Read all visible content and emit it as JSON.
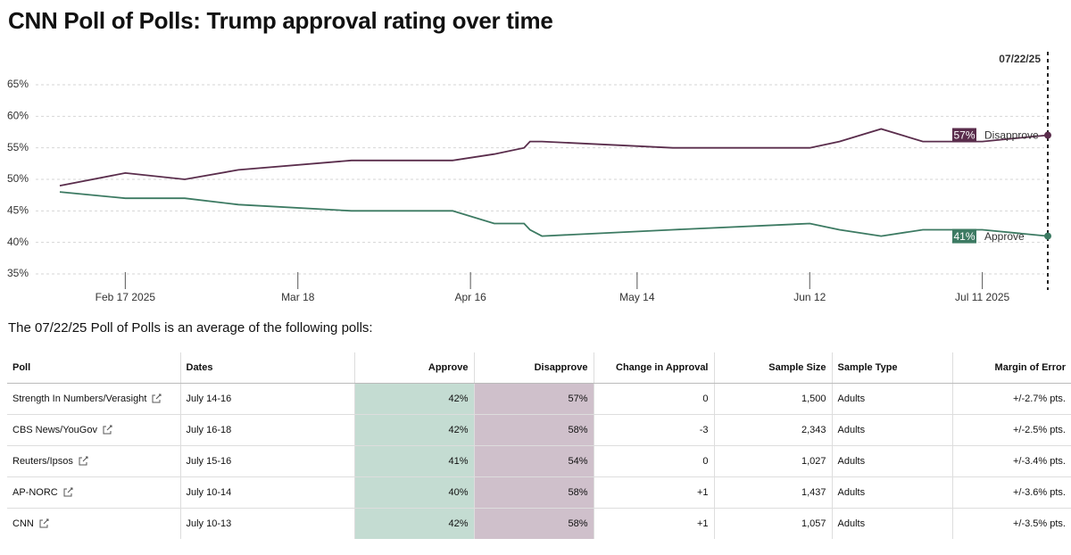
{
  "title": "CNN Poll of Polls: Trump approval rating over time",
  "chart_data": {
    "type": "line",
    "x": [
      "2025-02-06",
      "2025-02-17",
      "2025-02-27",
      "2025-03-08",
      "2025-03-27",
      "2025-04-13",
      "2025-04-20",
      "2025-04-25",
      "2025-04-26",
      "2025-04-28",
      "2025-05-20",
      "2025-06-12",
      "2025-06-17",
      "2025-06-24",
      "2025-07-01",
      "2025-07-11",
      "2025-07-22"
    ],
    "xlim": [
      "2025-02-06",
      "2025-07-22"
    ],
    "xticks": [
      {
        "value": "2025-02-17",
        "label": "Feb 17 2025"
      },
      {
        "value": "2025-03-18",
        "label": "Mar 18"
      },
      {
        "value": "2025-04-16",
        "label": "Apr 16"
      },
      {
        "value": "2025-05-14",
        "label": "May 14"
      },
      {
        "value": "2025-06-12",
        "label": "Jun 12"
      },
      {
        "value": "2025-07-11",
        "label": "Jul 11 2025"
      }
    ],
    "current_date": {
      "value": "2025-07-22",
      "label": "07/22/25"
    },
    "ylim": [
      35,
      65
    ],
    "yticks": [
      {
        "value": 35,
        "label": "35%"
      },
      {
        "value": 40,
        "label": "40%"
      },
      {
        "value": 45,
        "label": "45%"
      },
      {
        "value": 50,
        "label": "50%"
      },
      {
        "value": 55,
        "label": "55%"
      },
      {
        "value": 60,
        "label": "60%"
      },
      {
        "value": 65,
        "label": "65%"
      }
    ],
    "grid": true,
    "series": [
      {
        "name": "Disapprove",
        "color": "#5a2d4c",
        "values": [
          49,
          51,
          50,
          51.5,
          53,
          53,
          54,
          55,
          56,
          56,
          55,
          55,
          56,
          58,
          56,
          56,
          57
        ],
        "value_labels": [
          null,
          null,
          null,
          null,
          null,
          null,
          null,
          null,
          null,
          null,
          null,
          null,
          null,
          null,
          null,
          null,
          "57%"
        ]
      },
      {
        "name": "Approve",
        "color": "#3c7a62",
        "values": [
          48,
          47,
          47,
          46,
          45,
          45,
          43,
          43,
          42,
          41,
          42,
          43,
          42,
          41,
          42,
          42,
          41
        ],
        "value_labels": [
          null,
          null,
          null,
          null,
          null,
          null,
          null,
          null,
          null,
          null,
          null,
          null,
          null,
          null,
          null,
          null,
          "41%"
        ]
      }
    ]
  },
  "table": {
    "intro": "The 07/22/25 Poll of Polls is an average of the following polls:",
    "columns": [
      "Poll",
      "Dates",
      "Approve",
      "Disapprove",
      "Change in Approval",
      "Sample Size",
      "Sample Type",
      "Margin of Error"
    ],
    "rows": [
      [
        "Strength In Numbers/Verasight",
        "July 14-16",
        "42%",
        "57%",
        "0",
        "1,500",
        "Adults",
        "+/-2.7% pts."
      ],
      [
        "CBS News/YouGov",
        "July 16-18",
        "42%",
        "58%",
        "-3",
        "2,343",
        "Adults",
        "+/-2.5% pts."
      ],
      [
        "Reuters/Ipsos",
        "July 15-16",
        "41%",
        "54%",
        "0",
        "1,027",
        "Adults",
        "+/-3.4% pts."
      ],
      [
        "AP-NORC",
        "July 10-14",
        "40%",
        "58%",
        "+1",
        "1,437",
        "Adults",
        "+/-3.6% pts."
      ],
      [
        "CNN",
        "July 10-13",
        "42%",
        "58%",
        "+1",
        "1,057",
        "Adults",
        "+/-3.5% pts."
      ]
    ]
  }
}
